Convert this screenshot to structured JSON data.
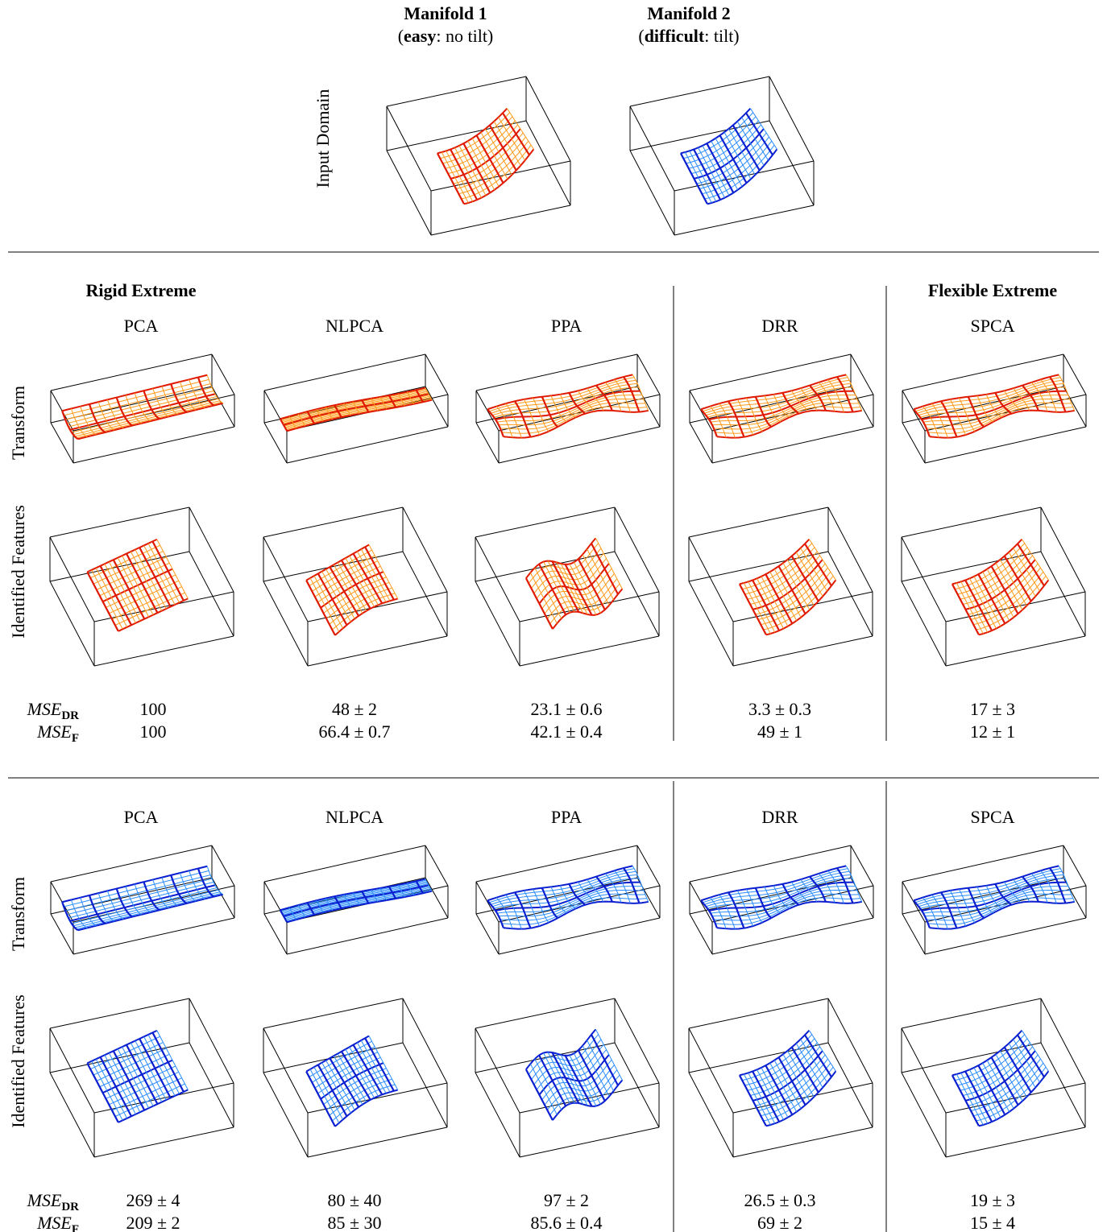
{
  "header": {
    "manifolds": [
      {
        "title": "Manifold 1",
        "subtitle": [
          "(",
          "easy",
          ": no tilt)"
        ]
      },
      {
        "title": "Manifold 2",
        "subtitle": [
          "(",
          "difficult",
          ": tilt)"
        ]
      }
    ],
    "row_label": "Input Domain"
  },
  "sections": [
    {
      "extremes": {
        "rigid": "Rigid Extreme",
        "flexible": "Flexible Extreme"
      },
      "methods": [
        "PCA",
        "NLPCA",
        "PPA",
        "DRR",
        "SPCA"
      ],
      "row_labels": [
        "Transform",
        "Identified Features"
      ],
      "metrics": [
        {
          "base": "MSE",
          "sub": "DR",
          "values": [
            "100",
            "48 ± 2",
            "23.1 ± 0.6",
            "3.3 ± 0.3",
            "17 ± 3"
          ]
        },
        {
          "base": "MSE",
          "sub": "F",
          "values": [
            "100",
            "66.4 ± 0.7",
            "42.1 ± 0.4",
            "49 ± 1",
            "12 ± 1"
          ]
        }
      ]
    },
    {
      "methods": [
        "PCA",
        "NLPCA",
        "PPA",
        "DRR",
        "SPCA"
      ],
      "row_labels": [
        "Transform",
        "Identified Features"
      ],
      "metrics": [
        {
          "base": "MSE",
          "sub": "DR",
          "values": [
            "269 ± 4",
            "80 ± 40",
            "97 ± 2",
            "26.5 ± 0.3",
            "19 ± 3"
          ]
        },
        {
          "base": "MSE",
          "sub": "F",
          "values": [
            "209 ± 2",
            "85 ± 30",
            "85.6 ± 0.4",
            "69 ± 2",
            "15 ± 4"
          ]
        }
      ]
    }
  ]
}
